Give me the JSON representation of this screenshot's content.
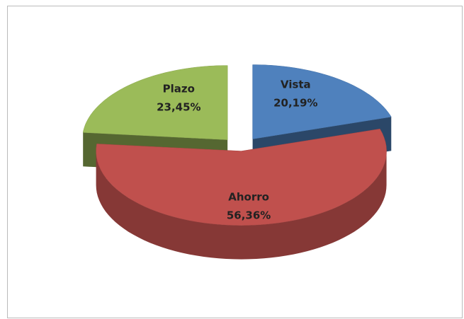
{
  "chart_data": {
    "type": "pie3d",
    "categories": [
      "Vista",
      "Ahorro",
      "Plazo"
    ],
    "values": [
      20.19,
      56.36,
      23.45
    ],
    "value_labels": [
      "20,19%",
      "56,36%",
      "23,45%"
    ],
    "colors": [
      "#4f81bd",
      "#c0504d",
      "#9bbb59"
    ]
  }
}
